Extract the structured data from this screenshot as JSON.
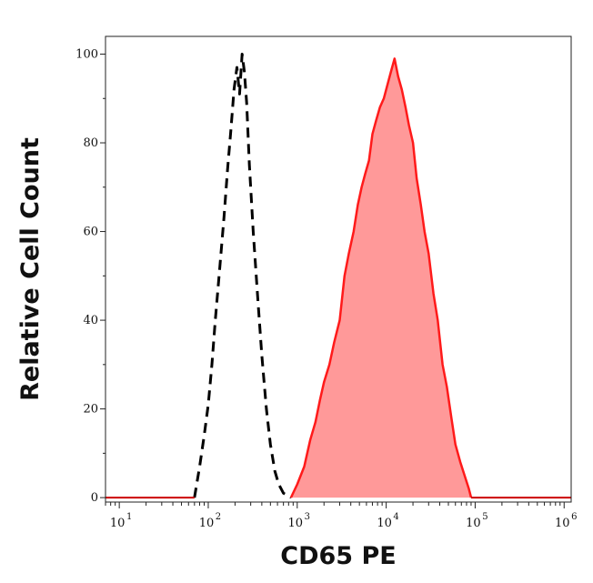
{
  "chart_data": {
    "type": "area",
    "xlabel": "CD65 PE",
    "ylabel": "Relative Cell Count",
    "xscale": "log",
    "xlim": [
      7,
      1200000
    ],
    "ylim": [
      -1,
      104
    ],
    "x_ticks": [
      {
        "base": "10",
        "exp": "1",
        "value": 10
      },
      {
        "base": "10",
        "exp": "2",
        "value": 100
      },
      {
        "base": "10",
        "exp": "3",
        "value": 1000
      },
      {
        "base": "10",
        "exp": "4",
        "value": 10000
      },
      {
        "base": "10",
        "exp": "5",
        "value": 100000
      },
      {
        "base": "10",
        "exp": "6",
        "value": 1000000
      }
    ],
    "y_ticks": [
      {
        "label": "0",
        "value": 0
      },
      {
        "label": "20",
        "value": 20
      },
      {
        "label": "40",
        "value": 40
      },
      {
        "label": "60",
        "value": 60
      },
      {
        "label": "80",
        "value": 80
      },
      {
        "label": "100",
        "value": 100
      }
    ],
    "grid": false,
    "series": [
      {
        "style": "dashed",
        "color": "#000000",
        "filled": false,
        "x": [
          70,
          80,
          90,
          100,
          110,
          120,
          135,
          150,
          165,
          180,
          195,
          210,
          225,
          240,
          255,
          270,
          290,
          320,
          360,
          400,
          450,
          500,
          560,
          620,
          700,
          780,
          850
        ],
        "y": [
          0,
          7,
          14,
          21,
          30,
          40,
          52,
          63,
          74,
          83,
          92,
          97,
          91,
          100,
          96,
          89,
          75,
          60,
          45,
          32,
          20,
          12,
          6,
          3,
          1,
          0.5,
          0
        ]
      },
      {
        "style": "solid",
        "color": "#ff1a1a",
        "fill": "#ff9999",
        "filled": true,
        "x": [
          850,
          1000,
          1200,
          1400,
          1600,
          1800,
          2000,
          2300,
          2600,
          3000,
          3400,
          3800,
          4300,
          4800,
          5300,
          5800,
          6400,
          7000,
          7700,
          8500,
          9400,
          10300,
          11300,
          12400,
          13600,
          15000,
          16500,
          18000,
          20000,
          22000,
          24500,
          27000,
          30000,
          34000,
          38000,
          43000,
          48000,
          54000,
          60000,
          68000,
          76000,
          85000,
          90000
        ],
        "y": [
          0,
          3,
          7,
          13,
          17,
          22,
          26,
          30,
          35,
          40,
          50,
          55,
          60,
          66,
          70,
          73,
          76,
          82,
          85,
          88,
          90,
          93,
          96,
          99,
          95,
          92,
          88,
          84,
          80,
          72,
          66,
          60,
          55,
          46,
          40,
          30,
          25,
          18,
          12,
          8,
          5,
          2,
          0
        ]
      }
    ]
  }
}
